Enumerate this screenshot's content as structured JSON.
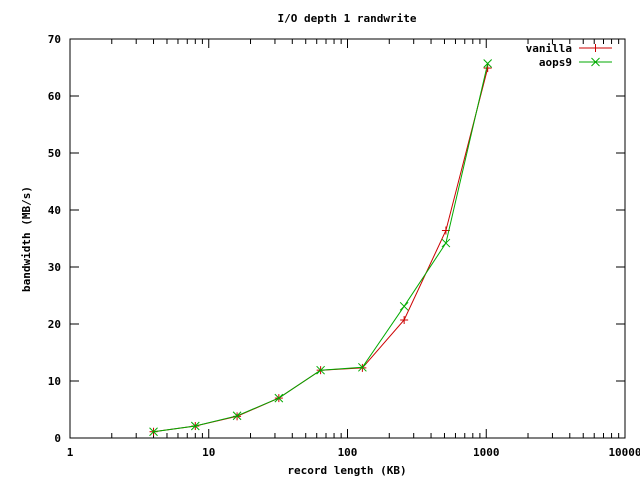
{
  "chart_data": {
    "type": "line",
    "title": "I/O depth 1 randwrite",
    "xlabel": "record length (KB)",
    "ylabel": "bandwidth (MB/s)",
    "xscale": "log",
    "xlim": [
      1,
      10000
    ],
    "ylim": [
      0,
      70
    ],
    "x_ticks": [
      1,
      10,
      100,
      1000,
      10000
    ],
    "x_tick_labels": [
      "1",
      "10",
      "100",
      "1000",
      "10000"
    ],
    "y_ticks": [
      0,
      10,
      20,
      30,
      40,
      50,
      60,
      70
    ],
    "y_tick_labels": [
      "0",
      "10",
      "20",
      "30",
      "40",
      "50",
      "60",
      "70"
    ],
    "grid": false,
    "legend_position": "top-right",
    "series": [
      {
        "name": "vanilla",
        "color": "#cc0000",
        "marker": "plus",
        "x": [
          4,
          8,
          16,
          32,
          64,
          128,
          256,
          512,
          1024
        ],
        "y": [
          1.1,
          2.1,
          3.8,
          7.0,
          11.9,
          12.3,
          20.7,
          36.4,
          64.9
        ]
      },
      {
        "name": "aops9",
        "color": "#00aa00",
        "marker": "cross",
        "x": [
          4,
          8,
          16,
          32,
          64,
          128,
          256,
          512,
          1024
        ],
        "y": [
          1.1,
          2.1,
          3.9,
          7.0,
          11.9,
          12.4,
          23.1,
          34.2,
          65.7
        ]
      }
    ]
  }
}
